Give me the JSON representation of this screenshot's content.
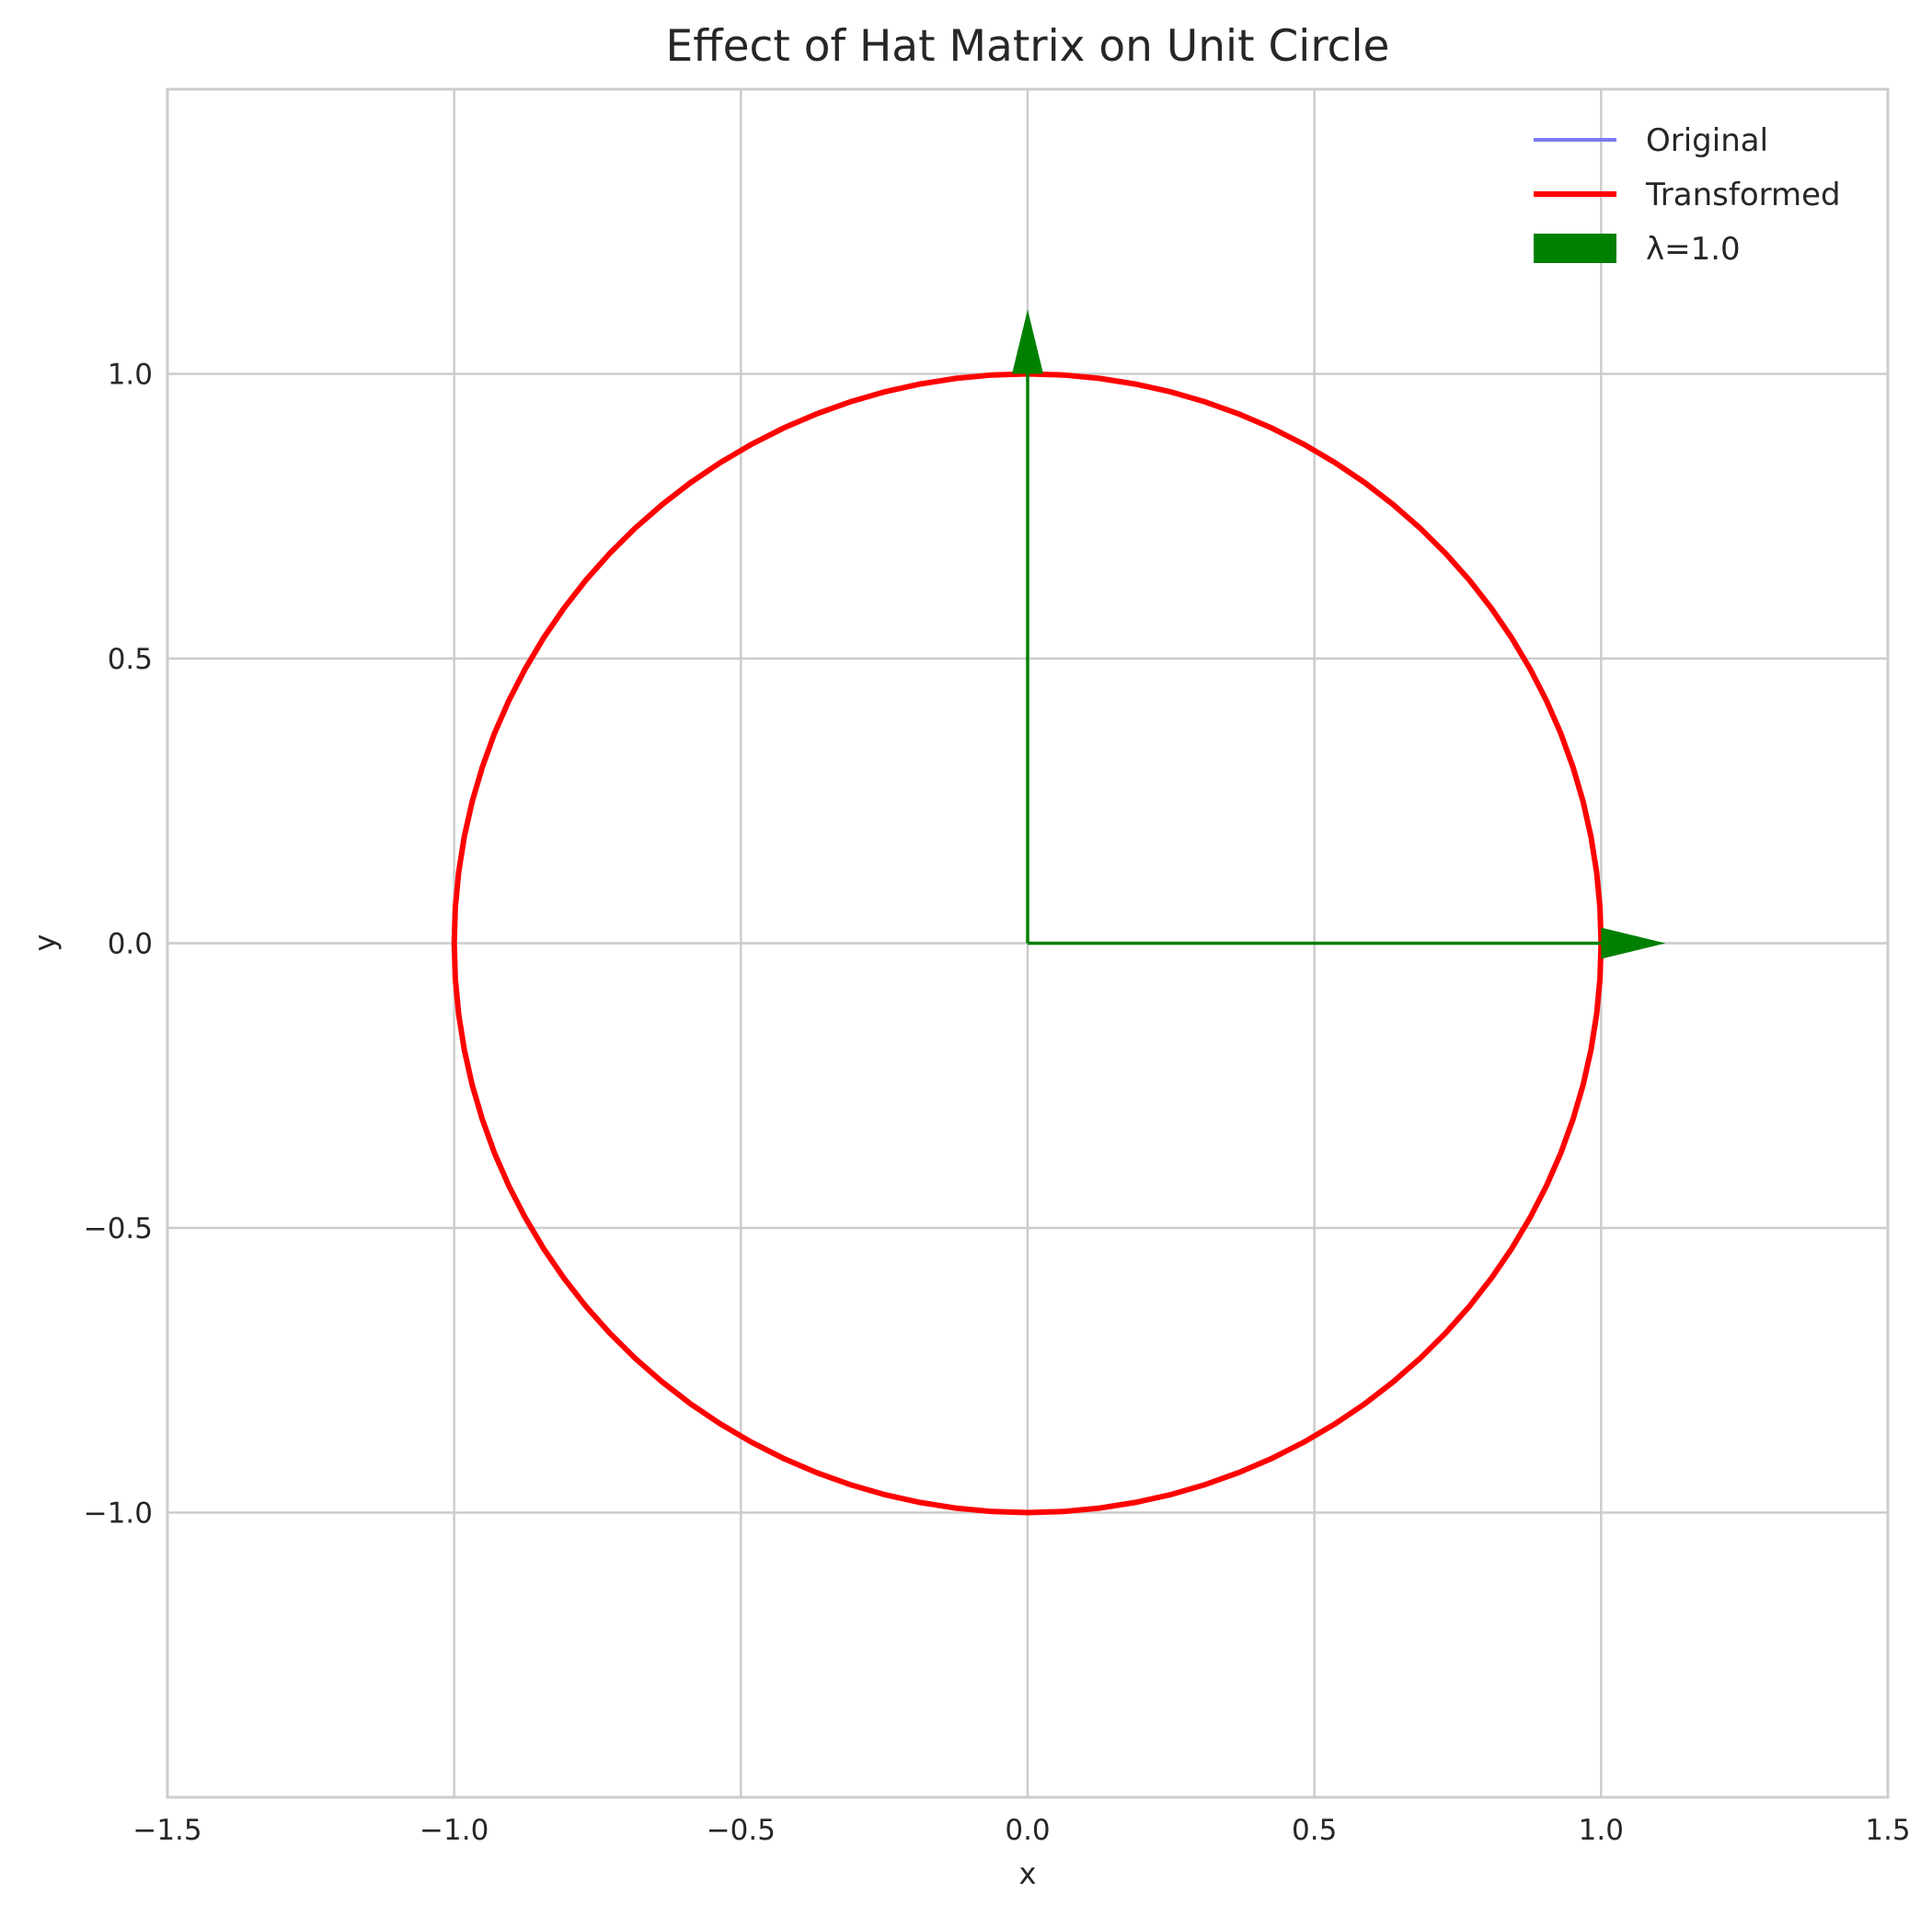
{
  "chart_data": {
    "type": "line",
    "title": "Effect of Hat Matrix on Unit Circle",
    "xlabel": "x",
    "ylabel": "y",
    "xlim": [
      -1.5,
      1.5
    ],
    "ylim": [
      -1.5,
      1.5
    ],
    "grid": true,
    "legend_position": "top-right",
    "xticks": [
      -1.5,
      -1.0,
      -0.5,
      0.0,
      0.5,
      1.0,
      1.5
    ],
    "xtick_labels": [
      "−1.5",
      "−1.0",
      "−0.5",
      "0.0",
      "0.5",
      "1.0",
      "1.5"
    ],
    "yticks": [
      -1.0,
      -0.5,
      0.0,
      0.5,
      1.0
    ],
    "ytick_labels": [
      "−1.0",
      "−0.5",
      "0.0",
      "0.5",
      "1.0"
    ],
    "series": [
      {
        "name": "Original",
        "kind": "circle",
        "center": [
          0,
          0
        ],
        "radius": 1.0,
        "color": "#7b7bf0"
      },
      {
        "name": "Transformed",
        "kind": "circle",
        "center": [
          0,
          0
        ],
        "radius": 1.0,
        "color": "#ff0000"
      }
    ],
    "arrows": [
      {
        "name": "λ=1.0",
        "from": [
          0,
          0
        ],
        "to": [
          1.0,
          0
        ],
        "color": "#008000"
      },
      {
        "from": [
          0,
          0
        ],
        "to": [
          0,
          1.0
        ],
        "color": "#008000"
      }
    ],
    "legend": [
      {
        "label": "Original",
        "kind": "line",
        "color": "#7b7bf0"
      },
      {
        "label": "Transformed",
        "kind": "line",
        "color": "#ff0000"
      },
      {
        "label": "λ=1.0",
        "kind": "patch",
        "color": "#008000"
      }
    ]
  }
}
